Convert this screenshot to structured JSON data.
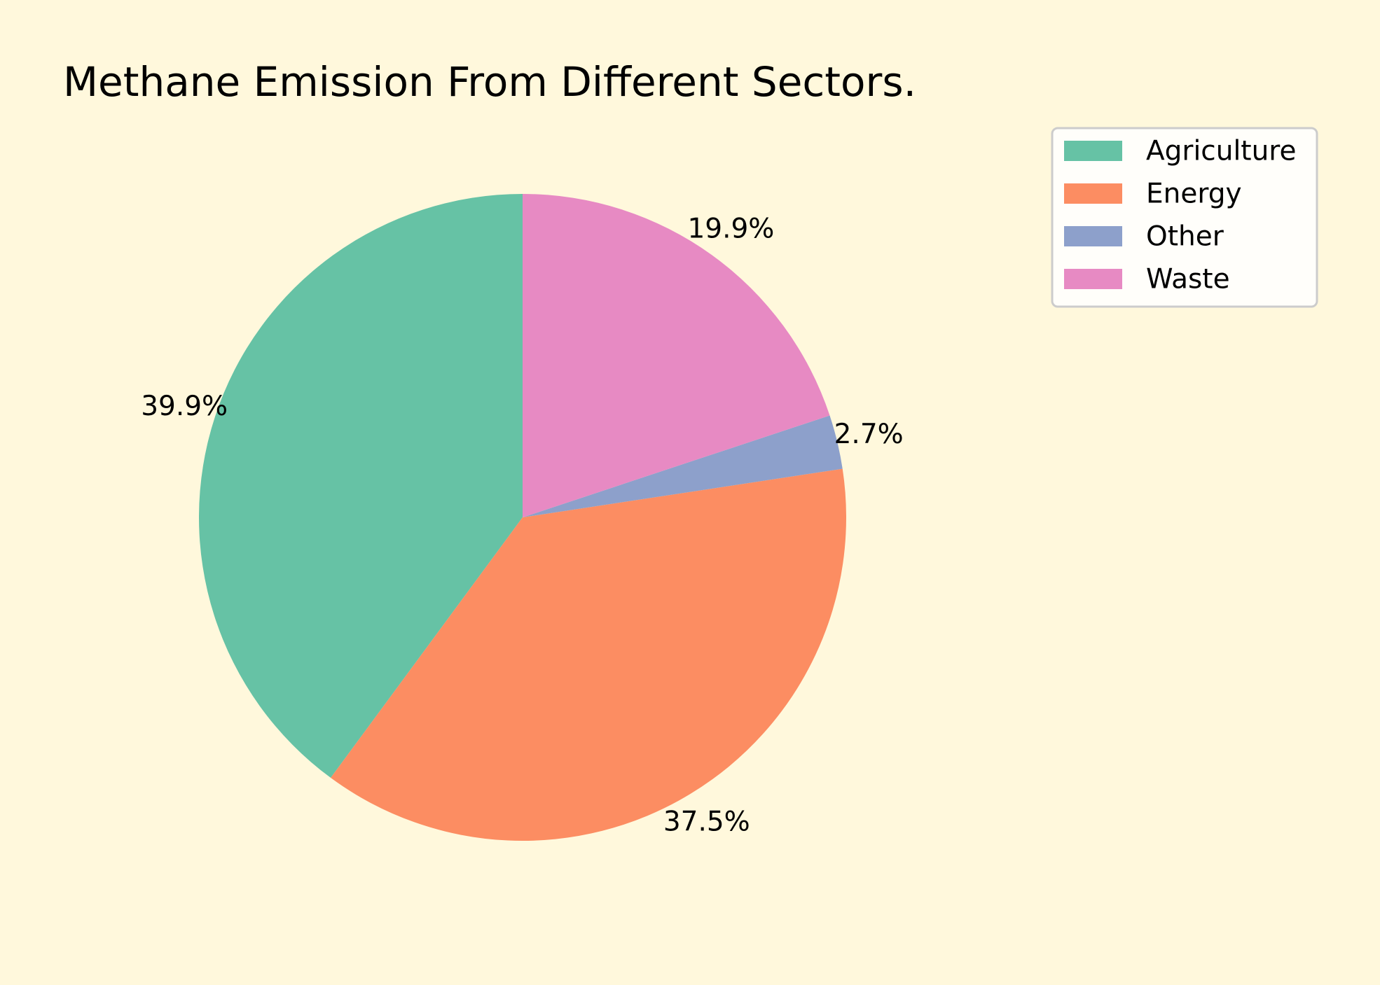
{
  "chart_data": {
    "type": "pie",
    "title": "Methane Emission From Different Sectors.",
    "categories": [
      "Agriculture",
      "Energy",
      "Other",
      "Waste"
    ],
    "values": [
      39.9,
      37.5,
      2.7,
      19.9
    ],
    "labels": [
      "39.9%",
      "37.5%",
      "2.7%",
      "19.9%"
    ],
    "colors": [
      "#66C2A5",
      "#FC8D62",
      "#8DA0CB",
      "#E78AC3"
    ],
    "start_angle_deg": 90,
    "direction": "counterclockwise",
    "legend": {
      "placement": "top-right",
      "entries": [
        "Agriculture",
        "Energy",
        "Other",
        "Waste"
      ]
    },
    "background": "#FFF8DC"
  }
}
